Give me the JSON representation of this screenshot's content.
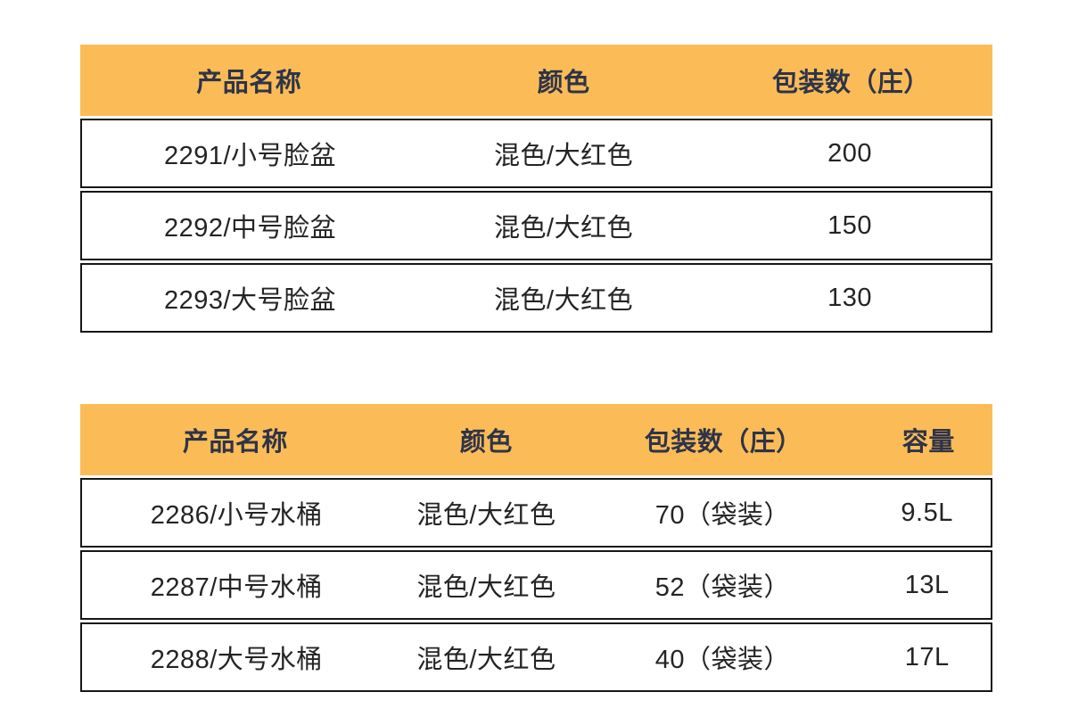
{
  "colors": {
    "header_bg": "#FBBC58",
    "header_text": "#2E3448",
    "body_text": "#242424",
    "row_border": "#161616",
    "page_bg": "#ffffff"
  },
  "tables": [
    {
      "name": "basin-packing-table",
      "headers": [
        "产品名称",
        "颜色",
        "包装数（庄）"
      ],
      "rows": [
        [
          "2291/小号脸盆",
          "混色/大红色",
          "200"
        ],
        [
          "2292/中号脸盆",
          "混色/大红色",
          "150"
        ],
        [
          "2293/大号脸盆",
          "混色/大红色",
          "130"
        ]
      ]
    },
    {
      "name": "bucket-packing-table",
      "headers": [
        "产品名称",
        "颜色",
        "包装数（庄）",
        "容量"
      ],
      "rows": [
        [
          "2286/小号水桶",
          "混色/大红色",
          "70（袋装）",
          "9.5L"
        ],
        [
          "2287/中号水桶",
          "混色/大红色",
          "52（袋装）",
          "13L"
        ],
        [
          "2288/大号水桶",
          "混色/大红色",
          "40（袋装）",
          "17L"
        ]
      ]
    }
  ]
}
